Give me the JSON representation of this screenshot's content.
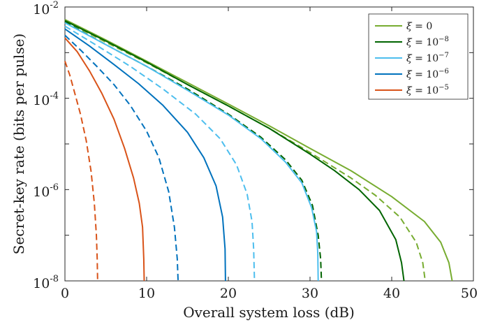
{
  "chart_data": {
    "type": "line",
    "title": "",
    "xlabel": "Overall system loss (dB)",
    "ylabel": "Secret-key rate (bits per pulse)",
    "xlim": [
      0,
      50
    ],
    "ylim": [
      1e-08,
      0.01
    ],
    "yscale": "log",
    "x_ticks": [
      "0",
      "10",
      "20",
      "30",
      "40",
      "50"
    ],
    "y_ticks": [
      {
        "base": "10",
        "exp": "-8"
      },
      {
        "base": "10",
        "exp": "-6"
      },
      {
        "base": "10",
        "exp": "-4"
      },
      {
        "base": "10",
        "exp": "-2"
      }
    ],
    "grid": false,
    "legend_position": "top-right",
    "legend": [
      {
        "prefix": "ξ = ",
        "base": "0",
        "exp": "",
        "color": "#77ac30"
      },
      {
        "prefix": "ξ = ",
        "base": "10",
        "exp": "−8",
        "color": "#006400"
      },
      {
        "prefix": "ξ = ",
        "base": "10",
        "exp": "−7",
        "color": "#4dbeee"
      },
      {
        "prefix": "ξ = ",
        "base": "10",
        "exp": "−6",
        "color": "#0072bd"
      },
      {
        "prefix": "ξ = ",
        "base": "10",
        "exp": "−5",
        "color": "#d95319"
      }
    ],
    "series": [
      {
        "color": "#77ac30",
        "dash": false,
        "x": [
          0,
          5,
          10,
          15,
          20,
          25,
          30,
          35,
          40,
          44,
          46,
          47,
          47.4
        ],
        "y": [
          0.0053,
          0.0019,
          0.00065,
          0.00022,
          7.5e-05,
          2.5e-05,
          8e-06,
          2.6e-06,
          7e-07,
          2e-07,
          7e-08,
          2.5e-08,
          1e-08
        ]
      },
      {
        "color": "#77ac30",
        "dash": true,
        "x": [
          0,
          5,
          10,
          15,
          20,
          25,
          30,
          35,
          38,
          41,
          43,
          43.8,
          44.1
        ],
        "y": [
          0.005,
          0.0017,
          0.0006,
          0.0002,
          6.8e-05,
          2.2e-05,
          6.5e-06,
          1.8e-06,
          7.5e-07,
          2.5e-07,
          7e-08,
          2.5e-08,
          1e-08
        ]
      },
      {
        "color": "#006400",
        "dash": false,
        "x": [
          0,
          5,
          10,
          15,
          20,
          25,
          30,
          33,
          36,
          38.5,
          40.5,
          41.2,
          41.5
        ],
        "y": [
          0.005,
          0.0018,
          0.00062,
          0.0002,
          6.8e-05,
          2.2e-05,
          6e-06,
          2.6e-06,
          1e-06,
          3.5e-07,
          8e-08,
          2.5e-08,
          1e-08
        ]
      },
      {
        "color": "#006400",
        "dash": true,
        "x": [
          0,
          5,
          10,
          15,
          20,
          24,
          27,
          29,
          30.3,
          31,
          31.3,
          31.4
        ],
        "y": [
          0.0047,
          0.0015,
          0.0005,
          0.00016,
          4.5e-05,
          1.4e-05,
          4.5e-06,
          1.6e-06,
          4.5e-07,
          1e-07,
          3e-08,
          1e-08
        ]
      },
      {
        "color": "#4dbeee",
        "dash": false,
        "x": [
          0,
          5,
          10,
          15,
          20,
          24,
          27,
          29,
          30.2,
          30.8,
          30.95,
          31
        ],
        "y": [
          0.0045,
          0.0015,
          0.0005,
          0.00015,
          4.3e-05,
          1.3e-05,
          4e-06,
          1.4e-06,
          4e-07,
          1.2e-07,
          4e-08,
          1e-08
        ]
      },
      {
        "color": "#4dbeee",
        "dash": true,
        "x": [
          0,
          4,
          8,
          12,
          16,
          19,
          21,
          22.3,
          22.9,
          23.1,
          23.2
        ],
        "y": [
          0.0038,
          0.0014,
          0.0005,
          0.00016,
          4.5e-05,
          1.3e-05,
          3.5e-06,
          8e-07,
          2e-07,
          5e-08,
          1e-08
        ]
      },
      {
        "color": "#0072bd",
        "dash": false,
        "x": [
          0,
          3,
          6,
          9,
          12,
          15,
          17,
          18.5,
          19.3,
          19.6,
          19.65
        ],
        "y": [
          0.0033,
          0.0014,
          0.00055,
          0.00021,
          7e-05,
          1.8e-05,
          5e-06,
          1.2e-06,
          2.5e-07,
          5e-08,
          1e-08
        ]
      },
      {
        "color": "#0072bd",
        "dash": true,
        "x": [
          0,
          2,
          4,
          6,
          8,
          10,
          11.5,
          12.7,
          13.4,
          13.75,
          13.85
        ],
        "y": [
          0.0024,
          0.0011,
          0.00048,
          0.0002,
          7e-05,
          1.9e-05,
          5e-06,
          9e-07,
          1.5e-07,
          3e-08,
          1e-08
        ]
      },
      {
        "color": "#d95319",
        "dash": false,
        "x": [
          0,
          1.5,
          3,
          4.5,
          6,
          7.3,
          8.4,
          9.1,
          9.5,
          9.65,
          9.7
        ],
        "y": [
          0.0021,
          0.00105,
          0.0004,
          0.00013,
          3.5e-05,
          8e-06,
          1.8e-06,
          5e-07,
          1.5e-07,
          3e-08,
          1e-08
        ]
      },
      {
        "color": "#d95319",
        "dash": true,
        "x": [
          0,
          0.6,
          1.2,
          1.9,
          2.6,
          3.2,
          3.6,
          3.85,
          3.95,
          4
        ],
        "y": [
          0.00065,
          0.00032,
          0.00013,
          4.5e-05,
          1.2e-05,
          2.5e-06,
          5e-07,
          1e-07,
          3e-08,
          1e-08
        ]
      }
    ]
  }
}
